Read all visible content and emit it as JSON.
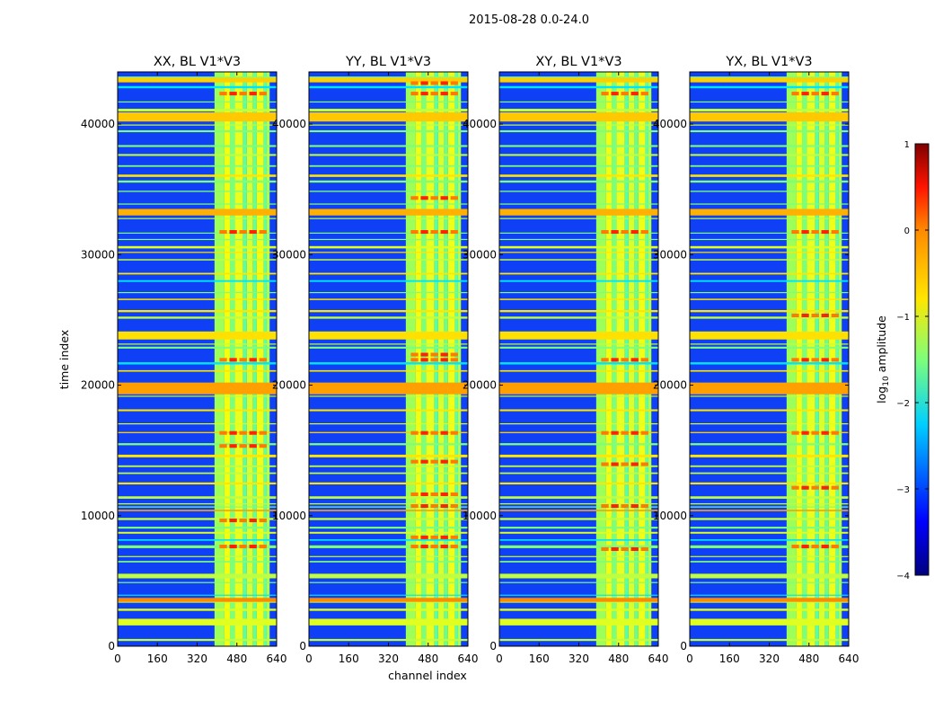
{
  "chart_data": {
    "type": "heatmap",
    "suptitle": "2015-08-28 0.0-24.0",
    "xlabel": "channel index",
    "ylabel": "time index",
    "xlim": [
      0,
      640
    ],
    "ylim": [
      0,
      44000
    ],
    "xticks": [
      0,
      160,
      320,
      480,
      640
    ],
    "yticks": [
      0,
      10000,
      20000,
      30000,
      40000
    ],
    "panels": [
      {
        "title": "XX, BL V1*V3",
        "highlight_rows": [
          7500,
          9500,
          15200,
          16200,
          21800,
          31600,
          42200
        ]
      },
      {
        "title": "YY, BL V1*V3",
        "highlight_rows": [
          7500,
          8200,
          10600,
          11500,
          14000,
          16200,
          21800,
          22200,
          31600,
          34200,
          42200,
          43000
        ]
      },
      {
        "title": "XY, BL V1*V3",
        "highlight_rows": [
          7300,
          10600,
          13800,
          16200,
          21800,
          31600,
          42200
        ]
      },
      {
        "title": "YX, BL V1*V3",
        "highlight_rows": [
          7500,
          12000,
          16200,
          21800,
          25200,
          31600,
          42200
        ]
      }
    ],
    "colorbar": {
      "label": "log10 amplitude",
      "range": [
        -4,
        1
      ],
      "ticks": [
        "1",
        "0",
        "−1",
        "−2",
        "−3",
        "−4"
      ],
      "colormap": "jet"
    }
  }
}
